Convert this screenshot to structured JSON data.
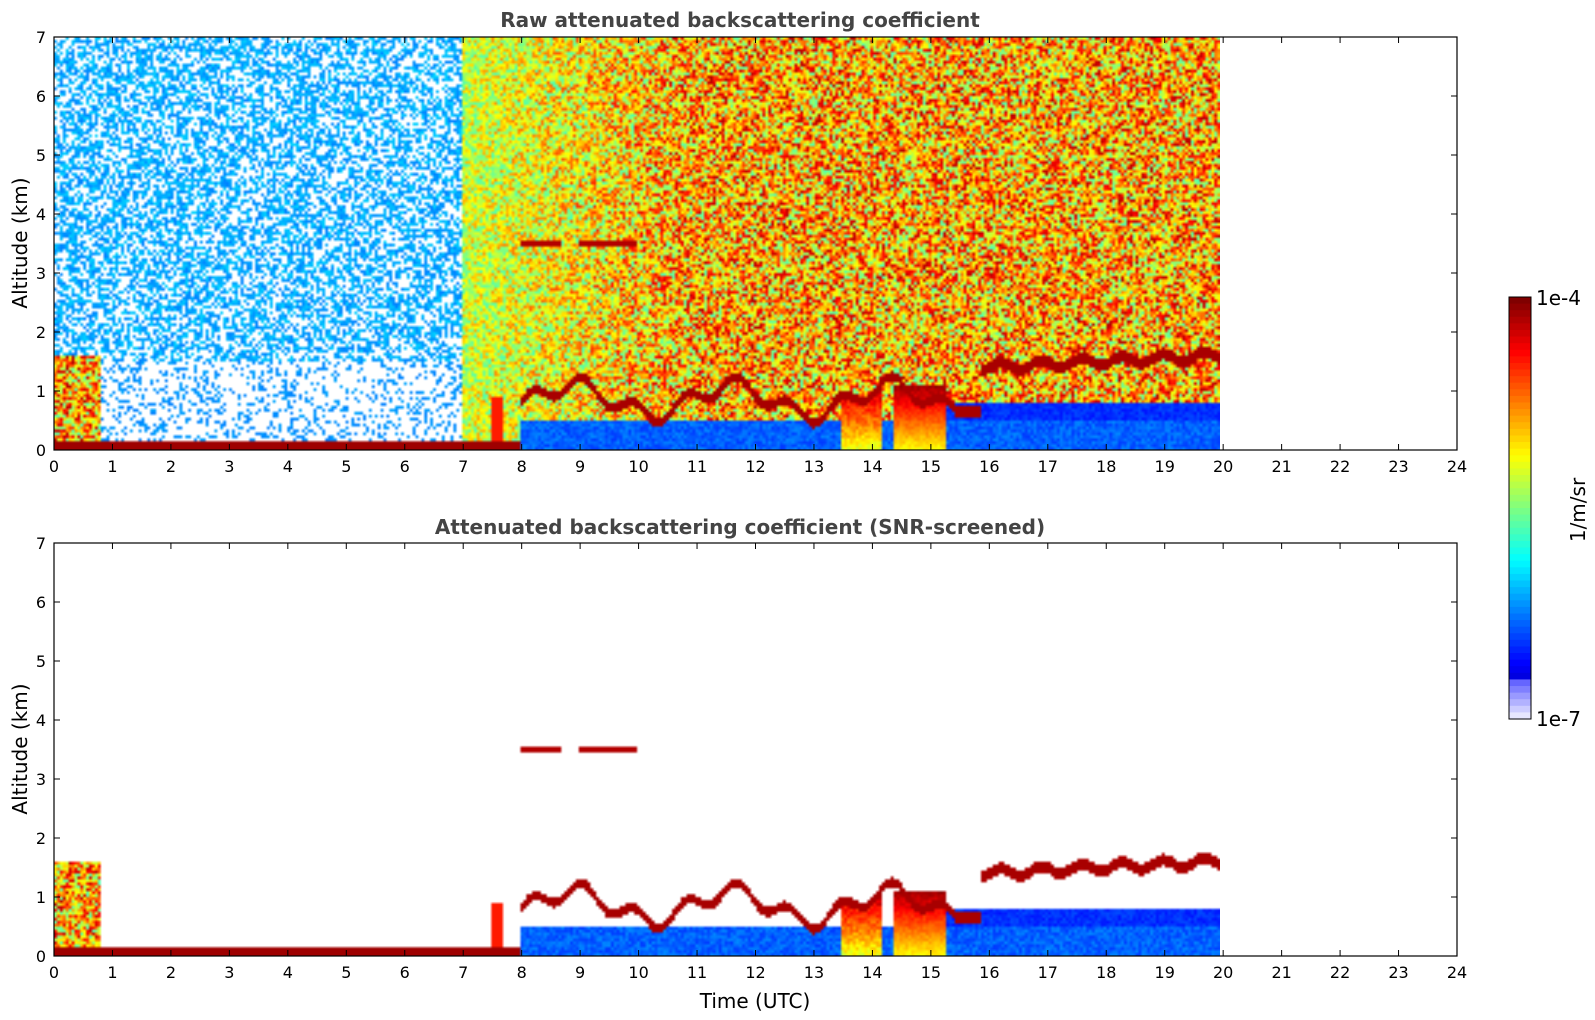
{
  "chart_data": [
    {
      "type": "heatmap",
      "title": "Raw attenuated backscattering coefficient",
      "xlabel": "",
      "ylabel": "Altitude (km)",
      "xlim": [
        0,
        24
      ],
      "ylim": [
        0,
        7
      ],
      "xticks": [
        "0",
        "1",
        "2",
        "3",
        "4",
        "5",
        "6",
        "7",
        "8",
        "9",
        "10",
        "11",
        "12",
        "13",
        "14",
        "15",
        "16",
        "17",
        "18",
        "19",
        "20",
        "21",
        "22",
        "23",
        "24"
      ],
      "yticks": [
        "0",
        "1",
        "2",
        "3",
        "4",
        "5",
        "6",
        "7"
      ],
      "data_end_time": 20,
      "layers": [
        {
          "name": "surface layer",
          "t0": 0,
          "t1": 8,
          "alt": 0.1,
          "thickness": 0.1
        },
        {
          "name": "boundary layer top",
          "t0": 8,
          "t1": 15.5,
          "alt": 1.0,
          "thickness": 0.15
        },
        {
          "name": "elevated cloud layer",
          "t0": 15.9,
          "t1": 20,
          "alt": 1.4,
          "thickness": 0.15
        },
        {
          "name": "aloft aerosol layer",
          "t0": 8,
          "t1": 10,
          "alt": 3.5,
          "thickness": 0.12
        }
      ]
    },
    {
      "type": "heatmap",
      "title": "Attenuated backscattering coefficient (SNR-screened)",
      "xlabel": "Time (UTC)",
      "ylabel": "Altitude (km)",
      "xlim": [
        0,
        24
      ],
      "ylim": [
        0,
        7
      ],
      "xticks": [
        "0",
        "1",
        "2",
        "3",
        "4",
        "5",
        "6",
        "7",
        "8",
        "9",
        "10",
        "11",
        "12",
        "13",
        "14",
        "15",
        "16",
        "17",
        "18",
        "19",
        "20",
        "21",
        "22",
        "23",
        "24"
      ],
      "yticks": [
        "0",
        "1",
        "2",
        "3",
        "4",
        "5",
        "6",
        "7"
      ],
      "data_end_time": 20
    }
  ],
  "colorbar": {
    "max_label": "1e-4",
    "min_label": "1e-7",
    "unit_label": "1/m/sr",
    "colormap": "jet"
  }
}
